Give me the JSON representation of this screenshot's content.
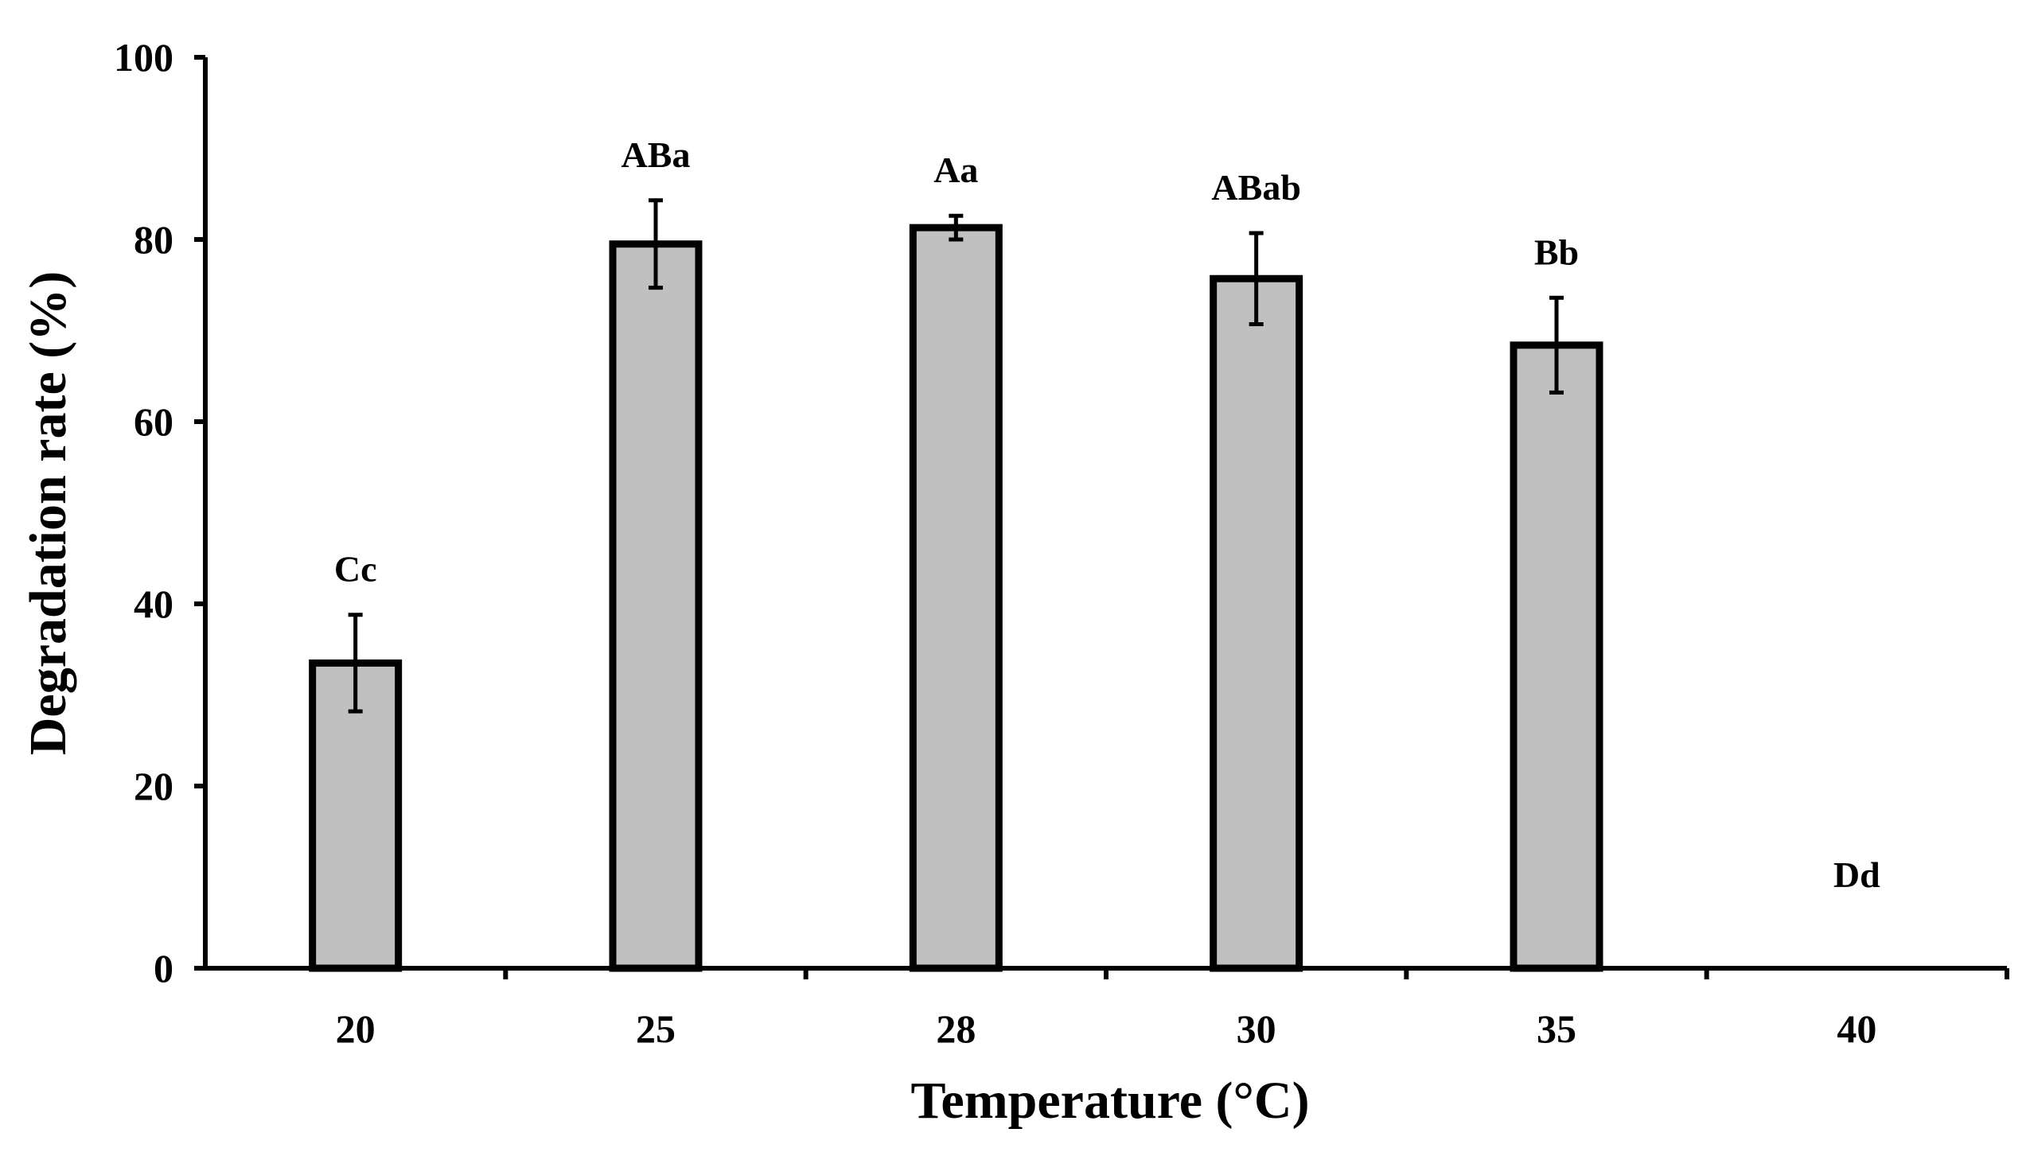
{
  "chart_data": {
    "type": "bar",
    "title": "",
    "xlabel": "Temperature (°C)",
    "ylabel": "Degradation rate (%)",
    "ylim": [
      0,
      100
    ],
    "yticks": [
      0,
      20,
      40,
      60,
      80,
      100
    ],
    "grid": false,
    "categories": [
      "20",
      "25",
      "28",
      "30",
      "35",
      "40"
    ],
    "values": [
      33.5,
      79.5,
      81.3,
      75.7,
      68.4,
      0
    ],
    "errors": [
      5.3,
      4.8,
      1.3,
      5.0,
      5.2,
      0
    ],
    "significance": [
      "Cc",
      "ABa",
      "Aa",
      "ABab",
      "Bb",
      "Dd"
    ],
    "bar_fill": "#c0c0c0",
    "bar_stroke": "#000000",
    "axis_color": "#000000"
  }
}
